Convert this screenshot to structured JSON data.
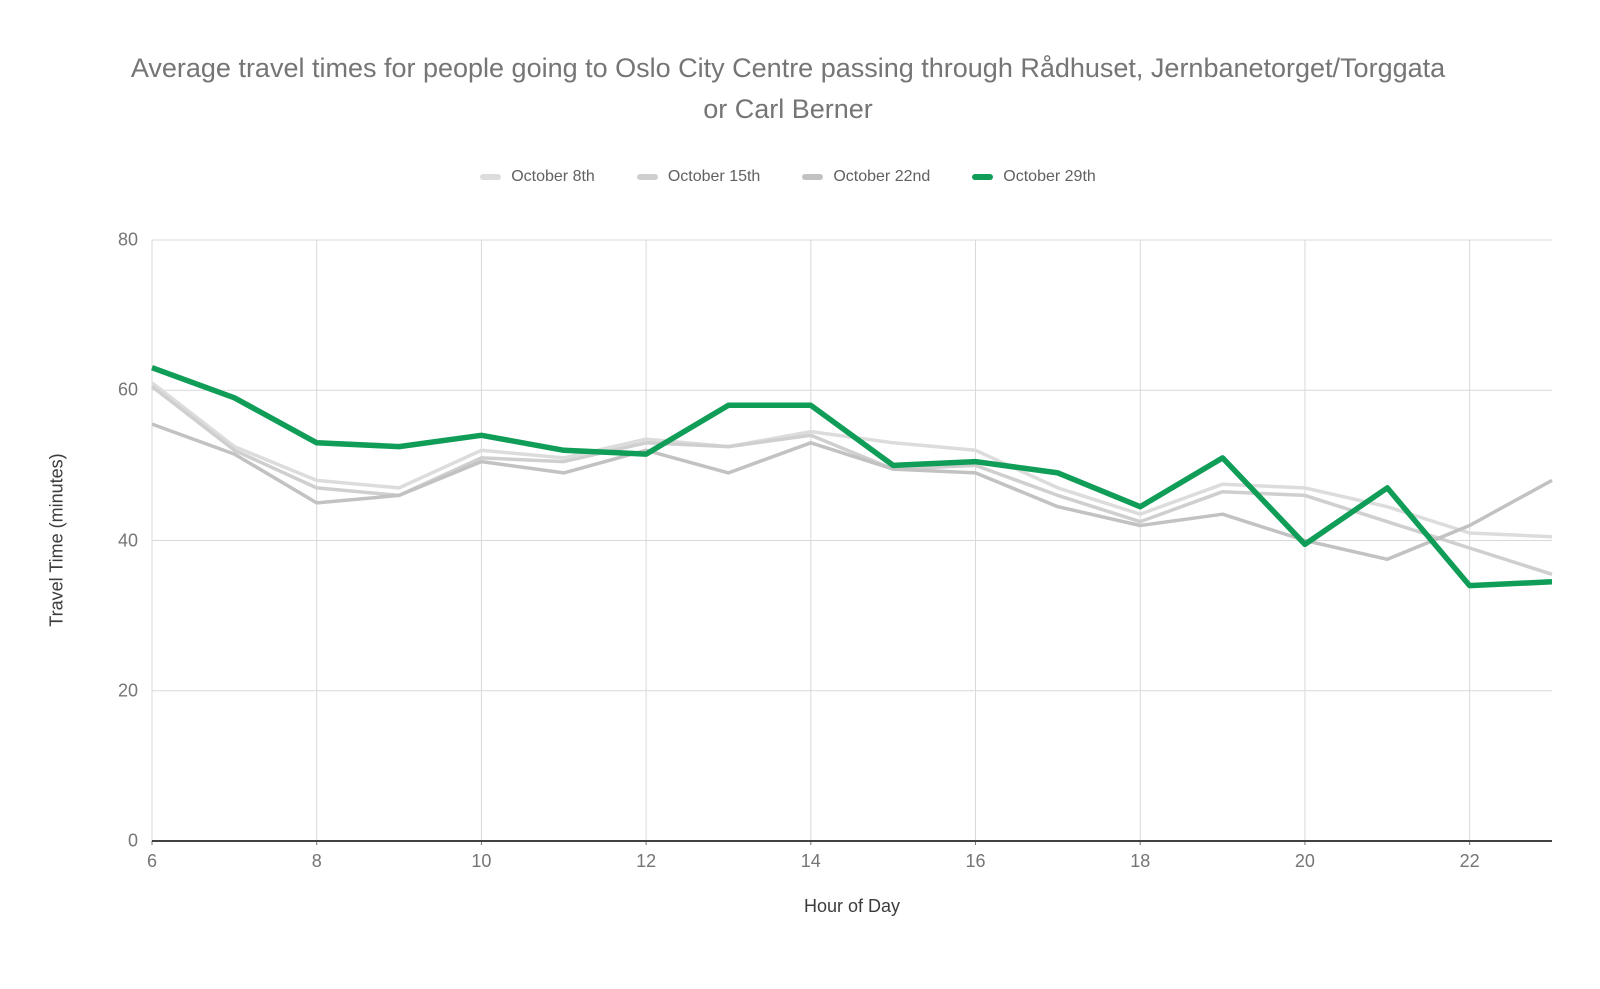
{
  "colors": {
    "accent_green": "#0f9d58",
    "gridline": "#d9d9d9",
    "baseline": "#424242",
    "title_text": "#757575",
    "tick_text": "#757575",
    "axis_title_text": "#3c3c3c",
    "legend_text": "#616161"
  },
  "chart_data": {
    "type": "line",
    "title": "Average travel times for people going to Oslo City Centre passing through Rådhuset, Jernbanetorget/Torggata or Carl Berner",
    "xlabel": "Hour of Day",
    "ylabel": "Travel Time (minutes)",
    "x": [
      6,
      7,
      8,
      9,
      10,
      11,
      12,
      13,
      14,
      15,
      16,
      17,
      18,
      19,
      20,
      21,
      22,
      23
    ],
    "x_ticks": [
      6,
      8,
      10,
      12,
      14,
      16,
      18,
      20,
      22
    ],
    "y_ticks": [
      0,
      20,
      40,
      60,
      80
    ],
    "xlim": [
      6,
      23
    ],
    "ylim": [
      0,
      80
    ],
    "grid": true,
    "legend_position": "top",
    "series": [
      {
        "name": "October 8th",
        "color": "#dcdcdc",
        "values": [
          61,
          52.5,
          48,
          47,
          52,
          51,
          53.5,
          52.5,
          54.5,
          53,
          52,
          47,
          43.5,
          47.5,
          47,
          44.5,
          41,
          40.5
        ]
      },
      {
        "name": "October 15th",
        "color": "#cfcfcf",
        "values": [
          60.5,
          52,
          47,
          46,
          51,
          50.5,
          53,
          52.5,
          54,
          49.5,
          50,
          46,
          42.5,
          46.5,
          46,
          42.5,
          39,
          35.5
        ]
      },
      {
        "name": "October 22nd",
        "color": "#c2c2c2",
        "values": [
          55.5,
          51.5,
          45,
          46,
          50.5,
          49,
          52,
          49,
          53,
          49.5,
          49,
          44.5,
          42,
          43.5,
          40,
          37.5,
          42,
          48
        ]
      },
      {
        "name": "October 29th",
        "color": "#0f9d58",
        "values": [
          63,
          59,
          53,
          52.5,
          54,
          52,
          51.5,
          58,
          58,
          50,
          50.5,
          49,
          44.5,
          51,
          39.5,
          47,
          34,
          34.5
        ]
      }
    ]
  }
}
